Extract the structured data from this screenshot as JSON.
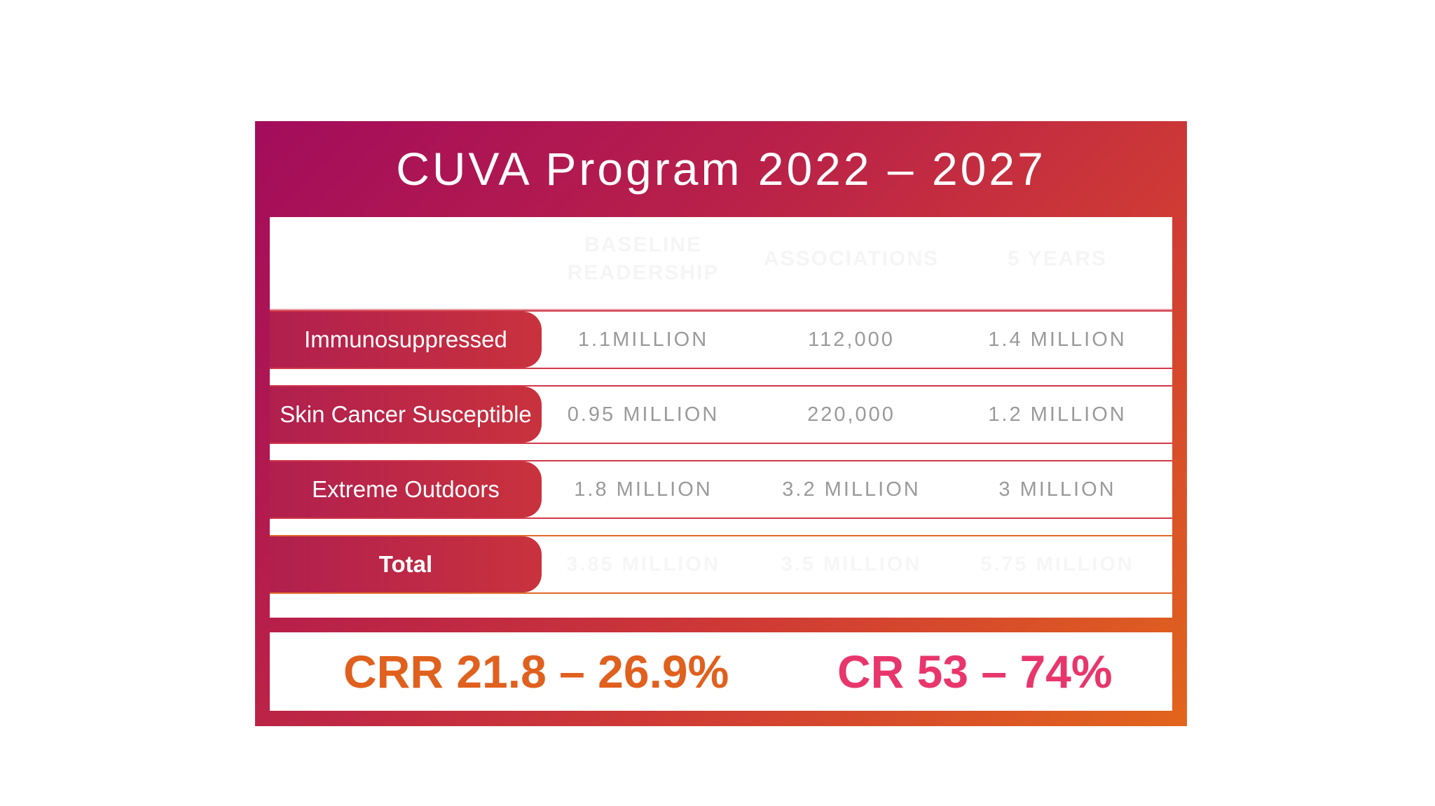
{
  "title": "CUVA Program 2022 – 2027",
  "columns": [
    "BASELINE READERSHIP",
    "ASSOCIATIONS",
    "5 YEARS"
  ],
  "rows": [
    {
      "label": "Immunosuppressed",
      "values": [
        "1.1MILLION",
        "112,000",
        "1.4 MILLION"
      ]
    },
    {
      "label": "Skin Cancer Susceptible",
      "values": [
        "0.95 MILLION",
        "220,000",
        "1.2 MILLION"
      ]
    },
    {
      "label": "Extreme Outdoors",
      "values": [
        "1.8 MILLION",
        "3.2 MILLION",
        "3 MILLION"
      ]
    }
  ],
  "total": {
    "label": "Total",
    "values": [
      "3.85 MILLION",
      "3.5 MILLION",
      "5.75 MILLION"
    ]
  },
  "stats": [
    {
      "text": "CRR 21.8 – 26.9%",
      "color": "#e0601e"
    },
    {
      "text": "CR 53 – 74%",
      "color": "#e8366d"
    }
  ]
}
